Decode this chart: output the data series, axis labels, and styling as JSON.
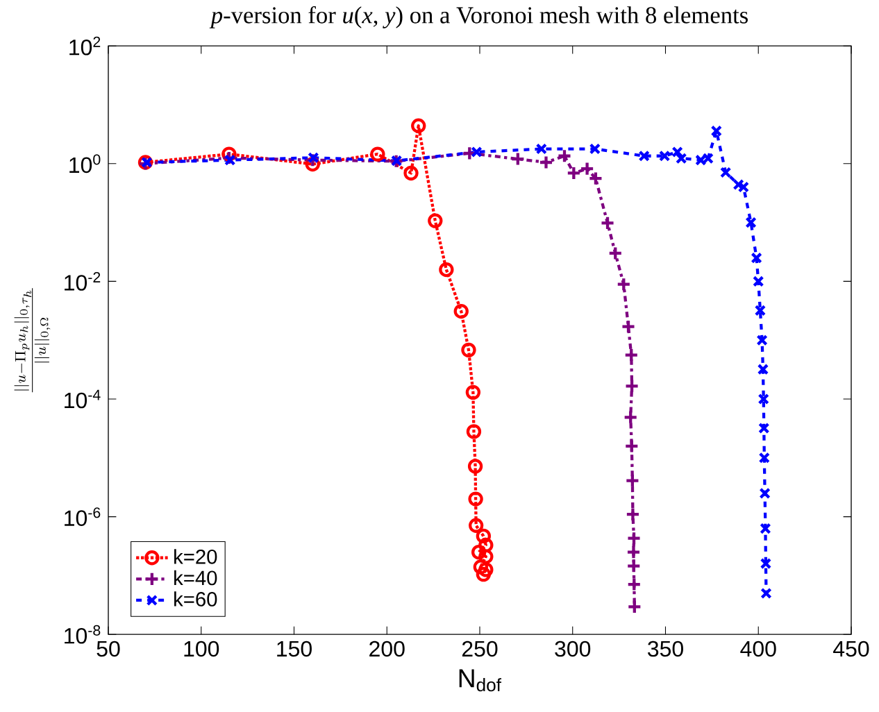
{
  "chart_data": {
    "type": "line",
    "title": "*p*-version for *u*(*x*, *y*) on a Voronoi mesh with 8 elements",
    "xlabel": "N$_{dof}$",
    "ylabel": "\\frac{||u-\\Pi_p u_h||_{0,\\tau_h}}{||u||_{0,\\Omega}}",
    "log": "y",
    "xlim": [
      50,
      450
    ],
    "xticks": [
      50,
      100,
      150,
      200,
      250,
      300,
      350,
      400,
      450
    ],
    "ylim": [
      1e-08,
      100
    ],
    "yticks": [
      {
        "value": 1e-08,
        "label": "10$^{-8}$"
      },
      {
        "value": 1e-06,
        "label": "10$^{-6}$"
      },
      {
        "value": 0.0001,
        "label": "10$^{-4}$"
      },
      {
        "value": 0.01,
        "label": "10$^{-2}$"
      },
      {
        "value": 1,
        "label": "10$^{0}$"
      },
      {
        "value": 100,
        "label": "10$^{2}$"
      }
    ],
    "grid": false,
    "legend": "bottom left",
    "series": [
      {
        "name": "k=20",
        "color": "#ff0000",
        "marker": "circle",
        "line_style": "dotted",
        "x": [
          70,
          115,
          160,
          195,
          213,
          217,
          226,
          232,
          240,
          244,
          246.4,
          246.8,
          247.6,
          247.8,
          248,
          252,
          253.3,
          249.5,
          253.3,
          250.5,
          253.3,
          252
        ],
        "values": [
          1.05,
          1.45,
          0.98,
          1.45,
          0.69,
          4.4,
          0.107,
          0.0158,
          0.0031,
          0.00068,
          0.00013,
          2.8e-05,
          7.2e-06,
          2e-06,
          7.1e-07,
          4.7e-07,
          3.3e-07,
          2.5e-07,
          2.1e-07,
          1.4e-07,
          1.26e-07,
          1.05e-07
        ]
      },
      {
        "name": "k=40",
        "color": "#7e0080",
        "marker": "plus",
        "line_style": "dashdot",
        "x": [
          70,
          115,
          160,
          205,
          244.5,
          270.5,
          285.7,
          295.6,
          300.6,
          307.8,
          312.4,
          318.8,
          323,
          327.5,
          330,
          331.6,
          331.9,
          331.2,
          331.8,
          332.2,
          332.4,
          333,
          332.8,
          332.9,
          333.1,
          333.3
        ],
        "values": [
          1.0,
          1.25,
          1.15,
          1.1,
          1.5,
          1.2,
          1.05,
          1.35,
          0.69,
          0.82,
          0.56,
          0.098,
          0.03,
          0.0089,
          0.0017,
          0.00056,
          0.000166,
          4.9e-05,
          1.58e-05,
          4.1e-06,
          1.1e-06,
          4.3e-07,
          2.5e-07,
          1.45e-07,
          7.1e-08,
          2.95e-08
        ]
      },
      {
        "name": "k=60",
        "color": "#0000ff",
        "marker": "cross",
        "line_style": "dashed",
        "x": [
          70.7,
          115.5,
          160.4,
          205.2,
          248.3,
          283.2,
          312,
          338.5,
          349.5,
          356.4,
          358.5,
          369,
          372.9,
          377.4,
          382.4,
          389.3,
          392,
          396,
          399,
          400,
          401,
          402,
          402.5,
          402.8,
          403,
          403.2,
          403.5,
          403.8,
          404,
          404.2
        ],
        "values": [
          1.05,
          1.15,
          1.26,
          1.12,
          1.58,
          1.78,
          1.78,
          1.35,
          1.35,
          1.58,
          1.23,
          1.15,
          1.23,
          3.6,
          0.71,
          0.44,
          0.4,
          0.1,
          0.025,
          0.01,
          0.0032,
          0.001,
          0.00032,
          0.0001,
          3.2e-05,
          1e-05,
          2.5e-06,
          6.3e-07,
          1.6e-07,
          5e-08
        ]
      }
    ]
  }
}
